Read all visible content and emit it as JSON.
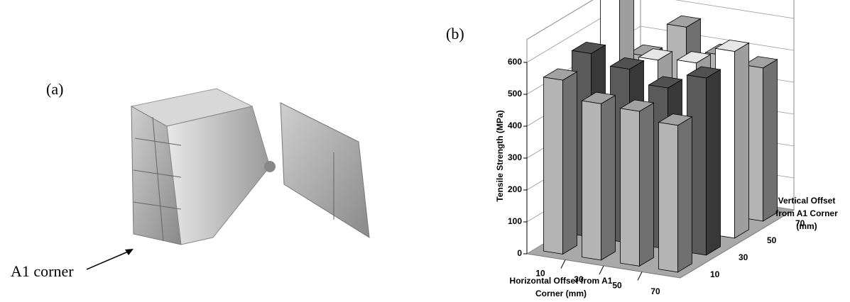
{
  "panel_a": {
    "label": "(a)",
    "annotation": "A1 corner"
  },
  "chart_data": {
    "type": "bar3d",
    "panel_label": "(b)",
    "y_label": "Tensile Strength (MPa)",
    "x_label": [
      "Horizontal Offset from A1",
      "Corner (mm)"
    ],
    "depth_label": [
      "Vertical Offset",
      "from A1 Corner",
      "(mm)"
    ],
    "categories": [
      10,
      30,
      50,
      70
    ],
    "depth_categories": [
      10,
      30,
      50,
      70
    ],
    "values": [
      [
        545,
        490,
        485,
        460
      ],
      [
        575,
        545,
        505,
        555
      ],
      [
        700,
        520,
        530,
        585
      ],
      [
        460,
        570,
        500,
        480
      ]
    ],
    "row_colors": [
      "#b4b4b4",
      "#5a5a5a",
      "#ffffff",
      "#b4b4b4"
    ],
    "ylim": [
      0,
      600
    ],
    "yticks": [
      0,
      100,
      200,
      300,
      400,
      500,
      600
    ],
    "grid": true
  }
}
